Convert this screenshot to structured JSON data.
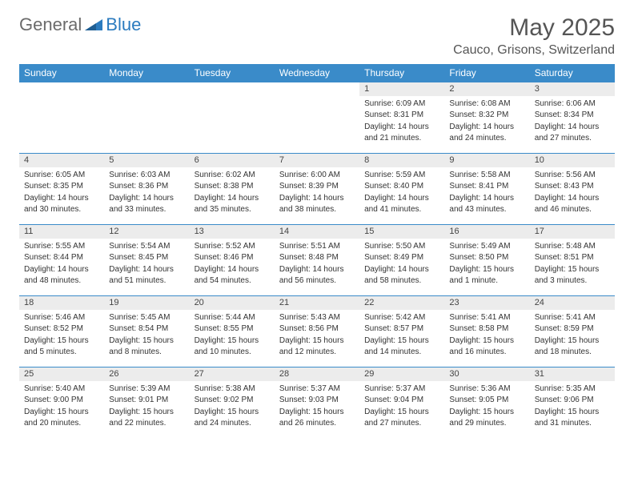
{
  "brand": {
    "general": "General",
    "blue": "Blue"
  },
  "title": "May 2025",
  "location": "Cauco, Grisons, Switzerland",
  "colors": {
    "header_bg": "#3a8bc9",
    "header_text": "#ffffff",
    "daynum_bg": "#ececec",
    "border": "#3a8bc9",
    "page_bg": "#ffffff",
    "text": "#333333",
    "logo_gray": "#6b6b6b",
    "logo_blue": "#2b7bbf"
  },
  "weekdays": [
    "Sunday",
    "Monday",
    "Tuesday",
    "Wednesday",
    "Thursday",
    "Friday",
    "Saturday"
  ],
  "weeks": [
    [
      null,
      null,
      null,
      null,
      {
        "n": "1",
        "sr": "Sunrise: 6:09 AM",
        "ss": "Sunset: 8:31 PM",
        "d1": "Daylight: 14 hours",
        "d2": "and 21 minutes."
      },
      {
        "n": "2",
        "sr": "Sunrise: 6:08 AM",
        "ss": "Sunset: 8:32 PM",
        "d1": "Daylight: 14 hours",
        "d2": "and 24 minutes."
      },
      {
        "n": "3",
        "sr": "Sunrise: 6:06 AM",
        "ss": "Sunset: 8:34 PM",
        "d1": "Daylight: 14 hours",
        "d2": "and 27 minutes."
      }
    ],
    [
      {
        "n": "4",
        "sr": "Sunrise: 6:05 AM",
        "ss": "Sunset: 8:35 PM",
        "d1": "Daylight: 14 hours",
        "d2": "and 30 minutes."
      },
      {
        "n": "5",
        "sr": "Sunrise: 6:03 AM",
        "ss": "Sunset: 8:36 PM",
        "d1": "Daylight: 14 hours",
        "d2": "and 33 minutes."
      },
      {
        "n": "6",
        "sr": "Sunrise: 6:02 AM",
        "ss": "Sunset: 8:38 PM",
        "d1": "Daylight: 14 hours",
        "d2": "and 35 minutes."
      },
      {
        "n": "7",
        "sr": "Sunrise: 6:00 AM",
        "ss": "Sunset: 8:39 PM",
        "d1": "Daylight: 14 hours",
        "d2": "and 38 minutes."
      },
      {
        "n": "8",
        "sr": "Sunrise: 5:59 AM",
        "ss": "Sunset: 8:40 PM",
        "d1": "Daylight: 14 hours",
        "d2": "and 41 minutes."
      },
      {
        "n": "9",
        "sr": "Sunrise: 5:58 AM",
        "ss": "Sunset: 8:41 PM",
        "d1": "Daylight: 14 hours",
        "d2": "and 43 minutes."
      },
      {
        "n": "10",
        "sr": "Sunrise: 5:56 AM",
        "ss": "Sunset: 8:43 PM",
        "d1": "Daylight: 14 hours",
        "d2": "and 46 minutes."
      }
    ],
    [
      {
        "n": "11",
        "sr": "Sunrise: 5:55 AM",
        "ss": "Sunset: 8:44 PM",
        "d1": "Daylight: 14 hours",
        "d2": "and 48 minutes."
      },
      {
        "n": "12",
        "sr": "Sunrise: 5:54 AM",
        "ss": "Sunset: 8:45 PM",
        "d1": "Daylight: 14 hours",
        "d2": "and 51 minutes."
      },
      {
        "n": "13",
        "sr": "Sunrise: 5:52 AM",
        "ss": "Sunset: 8:46 PM",
        "d1": "Daylight: 14 hours",
        "d2": "and 54 minutes."
      },
      {
        "n": "14",
        "sr": "Sunrise: 5:51 AM",
        "ss": "Sunset: 8:48 PM",
        "d1": "Daylight: 14 hours",
        "d2": "and 56 minutes."
      },
      {
        "n": "15",
        "sr": "Sunrise: 5:50 AM",
        "ss": "Sunset: 8:49 PM",
        "d1": "Daylight: 14 hours",
        "d2": "and 58 minutes."
      },
      {
        "n": "16",
        "sr": "Sunrise: 5:49 AM",
        "ss": "Sunset: 8:50 PM",
        "d1": "Daylight: 15 hours",
        "d2": "and 1 minute."
      },
      {
        "n": "17",
        "sr": "Sunrise: 5:48 AM",
        "ss": "Sunset: 8:51 PM",
        "d1": "Daylight: 15 hours",
        "d2": "and 3 minutes."
      }
    ],
    [
      {
        "n": "18",
        "sr": "Sunrise: 5:46 AM",
        "ss": "Sunset: 8:52 PM",
        "d1": "Daylight: 15 hours",
        "d2": "and 5 minutes."
      },
      {
        "n": "19",
        "sr": "Sunrise: 5:45 AM",
        "ss": "Sunset: 8:54 PM",
        "d1": "Daylight: 15 hours",
        "d2": "and 8 minutes."
      },
      {
        "n": "20",
        "sr": "Sunrise: 5:44 AM",
        "ss": "Sunset: 8:55 PM",
        "d1": "Daylight: 15 hours",
        "d2": "and 10 minutes."
      },
      {
        "n": "21",
        "sr": "Sunrise: 5:43 AM",
        "ss": "Sunset: 8:56 PM",
        "d1": "Daylight: 15 hours",
        "d2": "and 12 minutes."
      },
      {
        "n": "22",
        "sr": "Sunrise: 5:42 AM",
        "ss": "Sunset: 8:57 PM",
        "d1": "Daylight: 15 hours",
        "d2": "and 14 minutes."
      },
      {
        "n": "23",
        "sr": "Sunrise: 5:41 AM",
        "ss": "Sunset: 8:58 PM",
        "d1": "Daylight: 15 hours",
        "d2": "and 16 minutes."
      },
      {
        "n": "24",
        "sr": "Sunrise: 5:41 AM",
        "ss": "Sunset: 8:59 PM",
        "d1": "Daylight: 15 hours",
        "d2": "and 18 minutes."
      }
    ],
    [
      {
        "n": "25",
        "sr": "Sunrise: 5:40 AM",
        "ss": "Sunset: 9:00 PM",
        "d1": "Daylight: 15 hours",
        "d2": "and 20 minutes."
      },
      {
        "n": "26",
        "sr": "Sunrise: 5:39 AM",
        "ss": "Sunset: 9:01 PM",
        "d1": "Daylight: 15 hours",
        "d2": "and 22 minutes."
      },
      {
        "n": "27",
        "sr": "Sunrise: 5:38 AM",
        "ss": "Sunset: 9:02 PM",
        "d1": "Daylight: 15 hours",
        "d2": "and 24 minutes."
      },
      {
        "n": "28",
        "sr": "Sunrise: 5:37 AM",
        "ss": "Sunset: 9:03 PM",
        "d1": "Daylight: 15 hours",
        "d2": "and 26 minutes."
      },
      {
        "n": "29",
        "sr": "Sunrise: 5:37 AM",
        "ss": "Sunset: 9:04 PM",
        "d1": "Daylight: 15 hours",
        "d2": "and 27 minutes."
      },
      {
        "n": "30",
        "sr": "Sunrise: 5:36 AM",
        "ss": "Sunset: 9:05 PM",
        "d1": "Daylight: 15 hours",
        "d2": "and 29 minutes."
      },
      {
        "n": "31",
        "sr": "Sunrise: 5:35 AM",
        "ss": "Sunset: 9:06 PM",
        "d1": "Daylight: 15 hours",
        "d2": "and 31 minutes."
      }
    ]
  ]
}
